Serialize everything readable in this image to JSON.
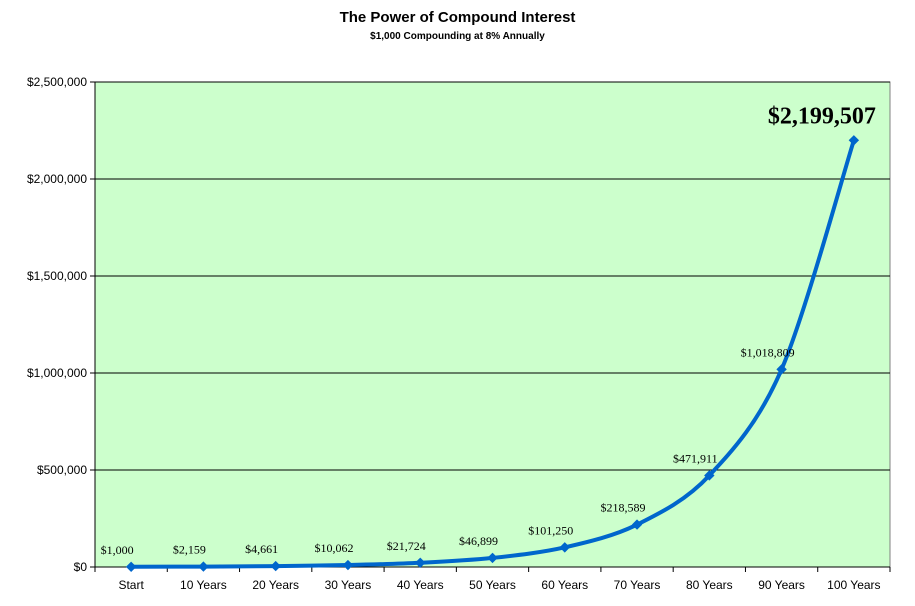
{
  "header": {
    "title": "The Power of Compound Interest",
    "subtitle": "$1,000 Compounding at 8% Annually"
  },
  "colors": {
    "plot_background": "#ccffcc",
    "line": "#0066cc",
    "gridline": "#000000"
  },
  "chart_data": {
    "type": "line",
    "title": "The Power of Compound Interest",
    "subtitle": "$1,000 Compounding at 8% Annually",
    "xlabel": "",
    "ylabel": "",
    "categories": [
      "Start",
      "10 Years",
      "20 Years",
      "30 Years",
      "40 Years",
      "50 Years",
      "60 Years",
      "70 Years",
      "80 Years",
      "90 Years",
      "100 Years"
    ],
    "values": [
      1000,
      2159,
      4661,
      10062,
      21724,
      46899,
      101250,
      218589,
      471911,
      1018809,
      2199507
    ],
    "data_labels": [
      "$1,000",
      "$2,159",
      "$4,661",
      "$10,062",
      "$21,724",
      "$46,899",
      "$101,250",
      "$218,589",
      "$471,911",
      "$1,018,809",
      "$2,199,507"
    ],
    "ylim": [
      0,
      2500000
    ],
    "yticks": [
      0,
      500000,
      1000000,
      1500000,
      2000000,
      2500000
    ],
    "ytick_labels": [
      "$0",
      "$500,000",
      "$1,000,000",
      "$1,500,000",
      "$2,000,000",
      "$2,500,000"
    ],
    "grid": true,
    "legend": "none",
    "smooth": true,
    "marker": "diamond"
  }
}
